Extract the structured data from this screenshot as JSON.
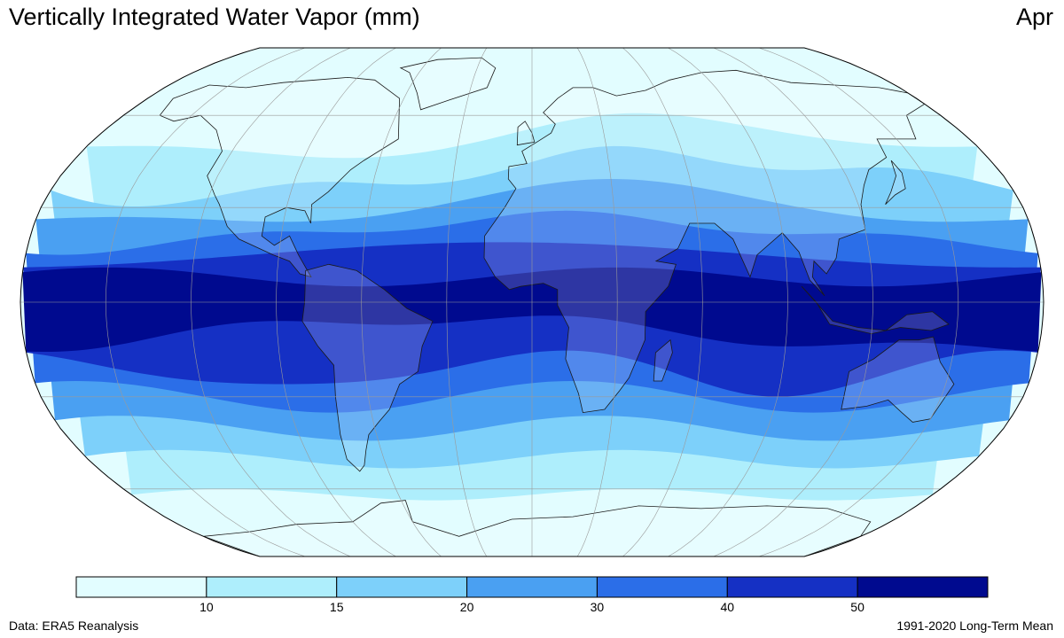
{
  "title": "Vertically Integrated Water Vapor (mm)",
  "month": "Apr",
  "source": "Data: ERA5 Reanalysis",
  "period": "1991-2020 Long-Term Mean",
  "colorbar": {
    "ticks": [
      "10",
      "15",
      "20",
      "30",
      "40",
      "50"
    ],
    "colors": [
      "#e2fdff",
      "#aeeefc",
      "#7dd0fa",
      "#4aa0f2",
      "#2b6ee8",
      "#1530c4",
      "#000a8f"
    ]
  },
  "map": {
    "projection": "robinson",
    "ocean_base_color": "#e2fdff",
    "graticule_color": "#9a9a9a",
    "coastline_color": "#1a1a1a",
    "land_color_note_free": ""
  }
}
